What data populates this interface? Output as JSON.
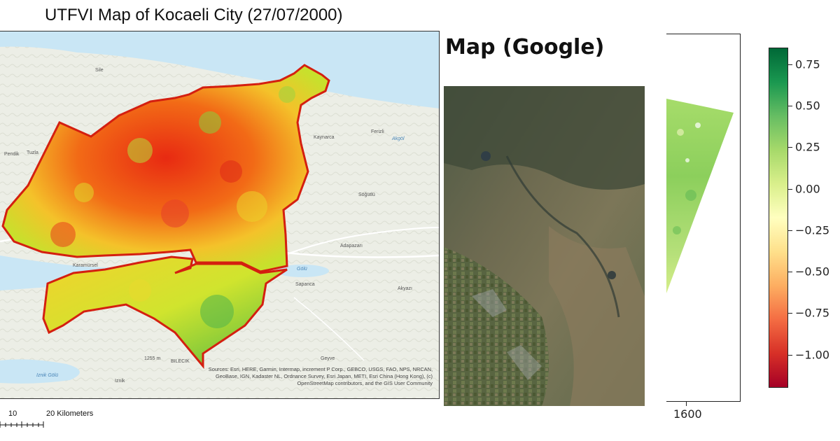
{
  "left_map": {
    "title": "UTFVI Map of Kocaeli City (27/07/2000)",
    "attribution": "Sources: Esri, HERE, Garmin, Intermap, increment P Corp., GEBCO, USGS, FAO, NPS, NRCAN, GeoBase, IGN, Kadaster NL, Ordnance Survey, Esri Japan, METI, Esri China (Hong Kong), (c) OpenStreetMap contributors, and the GIS User Community",
    "scale_labels": [
      "10",
      "20 Kilometers"
    ],
    "place_labels": [
      {
        "text": "Sile"
      },
      {
        "text": "Kaynarca"
      },
      {
        "text": "Ferizli"
      },
      {
        "text": "Akgöl"
      },
      {
        "text": "Söğütlü"
      },
      {
        "text": "Adapazarı"
      },
      {
        "text": "Sapanca"
      },
      {
        "text": "Akyazı"
      },
      {
        "text": "Karamürsel"
      },
      {
        "text": "Tuzla"
      },
      {
        "text": "Pendik"
      },
      {
        "text": "Geyve"
      },
      {
        "text": "BILECIK"
      },
      {
        "text": "Iznik"
      },
      {
        "text": "Iznik Gölü"
      },
      {
        "text": "Gölü"
      },
      {
        "text": "1255 m"
      }
    ],
    "region_color": "#e8321e",
    "water_color": "#c9e6f5"
  },
  "middle_map": {
    "title": "Map (Google)"
  },
  "right_plot": {
    "x_tick_labels": [
      "1600"
    ],
    "colorbar": {
      "ticks": [
        0.75,
        0.5,
        0.25,
        0.0,
        -0.25,
        -0.5,
        -0.75,
        -1.0
      ],
      "tick_labels": [
        "0.75",
        "0.50",
        "0.25",
        "0.00",
        "−0.25",
        "−0.50",
        "−0.75",
        "−1.00"
      ],
      "range": [
        -1.2,
        0.85
      ],
      "colormap": "RdYlGn"
    }
  }
}
